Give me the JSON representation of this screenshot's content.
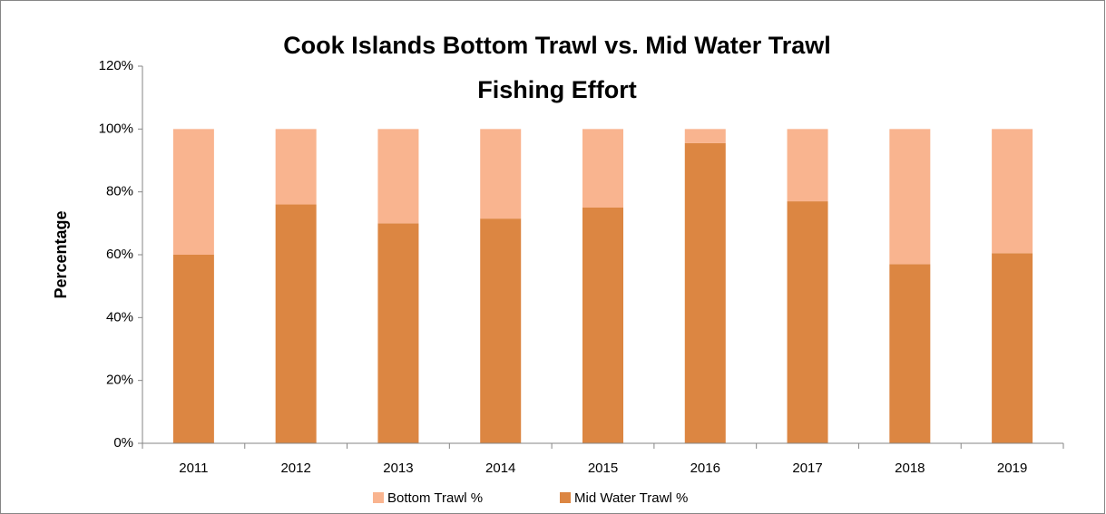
{
  "chart_data": {
    "type": "stacked-bar",
    "title": [
      "Cook Islands Bottom Trawl vs. Mid Water Trawl",
      "Fishing Effort"
    ],
    "y_label": "Percentage",
    "categories": [
      "2011",
      "2012",
      "2013",
      "2014",
      "2015",
      "2016",
      "2017",
      "2018",
      "2019"
    ],
    "series": [
      {
        "name": "Bottom Trawl %",
        "color": "#f9b48f",
        "values": [
          40,
          24,
          30,
          28.5,
          25,
          4.5,
          23,
          43,
          39.5
        ]
      },
      {
        "name": "Mid Water Trawl %",
        "color": "#dc8642",
        "values": [
          60,
          76,
          70,
          71.5,
          75,
          95.5,
          77,
          57,
          60.5
        ]
      }
    ],
    "ylim": [
      0,
      120
    ],
    "yticks": [
      {
        "value": 0,
        "label": "0%"
      },
      {
        "value": 20,
        "label": "20%"
      },
      {
        "value": 40,
        "label": "40%"
      },
      {
        "value": 60,
        "label": "60%"
      },
      {
        "value": 80,
        "label": "80%"
      },
      {
        "value": 100,
        "label": "100%"
      },
      {
        "value": 120,
        "label": "120%"
      }
    ],
    "legend": "bottom"
  }
}
